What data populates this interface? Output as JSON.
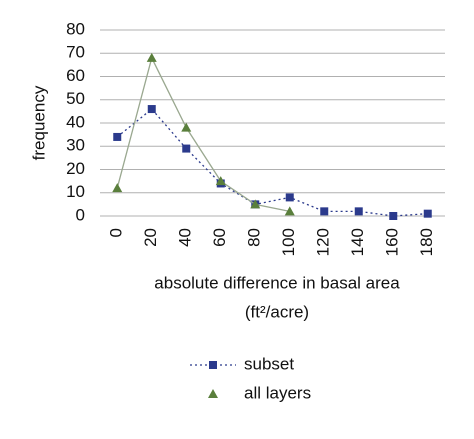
{
  "chart_data": {
    "type": "line",
    "y_label": "frequency",
    "x_label": [
      "absolute difference in basal area",
      "(ft²/acre)"
    ],
    "x": [
      0,
      20,
      40,
      60,
      80,
      100,
      120,
      140,
      160,
      180
    ],
    "xlim": [
      -10,
      190
    ],
    "xticks": [
      0,
      20,
      40,
      60,
      80,
      100,
      120,
      140,
      160,
      180
    ],
    "ylim": [
      0,
      80
    ],
    "yticks": [
      0,
      10,
      20,
      30,
      40,
      50,
      60,
      70,
      80
    ],
    "grid": true,
    "series": [
      {
        "name": "subset",
        "color": "#2b3a8c",
        "marker": "square",
        "line": "dotted",
        "values": [
          34,
          46,
          29,
          14,
          5,
          8,
          2,
          2,
          0,
          1
        ]
      },
      {
        "name": "all layers",
        "color": "#5a7f3c",
        "marker": "triangle",
        "line": "solid",
        "values": [
          12,
          68,
          38,
          15,
          5,
          2,
          null,
          null,
          null,
          null
        ]
      }
    ]
  }
}
